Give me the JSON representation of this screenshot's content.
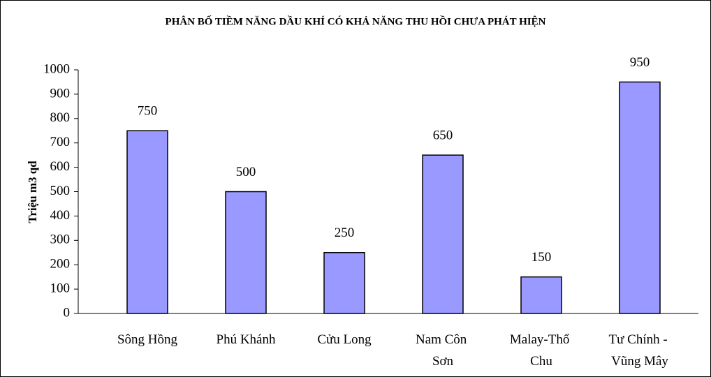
{
  "chart_data": {
    "type": "bar",
    "title": "PHÂN BỐ TIỀM NĂNG DẦU KHÍ CÓ KHẢ NĂNG THU HỒI CHƯA PHÁT HIỆN",
    "y_label": "Triệu m3 qd",
    "categories": [
      "Sông Hồng",
      "Phú Khánh",
      "Cửu Long",
      "Nam Côn Sơn",
      "Malay-Thổ Chu",
      "Tư Chính - Vũng Mây"
    ],
    "values": [
      750,
      500,
      250,
      650,
      150,
      950
    ],
    "color": "#9999ff",
    "ylim": [
      0,
      1000
    ],
    "yticks": [
      0,
      100,
      200,
      300,
      400,
      500,
      600,
      700,
      800,
      900,
      1000
    ],
    "grid": false
  }
}
